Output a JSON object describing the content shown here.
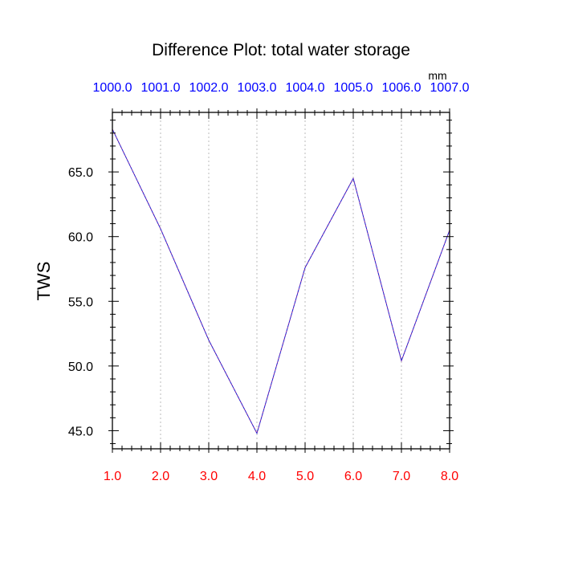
{
  "chart_data": {
    "type": "line",
    "title": "Difference Plot: total water storage",
    "ylabel": "TWS",
    "top_axis_units": "mm",
    "x": [
      1.0,
      2.0,
      3.0,
      4.0,
      5.0,
      6.0,
      7.0,
      8.0
    ],
    "xlim": [
      1.0,
      8.0
    ],
    "ylim": [
      43.6,
      69.6
    ],
    "x_ticks": [
      "1.0",
      "2.0",
      "3.0",
      "4.0",
      "5.0",
      "6.0",
      "7.0",
      "8.0"
    ],
    "top_ticks": [
      "1000.0",
      "1001.0",
      "1002.0",
      "1003.0",
      "1004.0",
      "1005.0",
      "1006.0",
      "1007.0"
    ],
    "y_ticks": [
      45.0,
      50.0,
      55.0,
      60.0,
      65.0
    ],
    "y_tick_labels": [
      "45.0",
      "50.0",
      "55.0",
      "60.0",
      "65.0"
    ],
    "grid": "vertical-dotted",
    "series": [
      {
        "values": [
          68.3,
          60.6,
          52.0,
          44.8,
          57.6,
          64.5,
          50.4,
          60.5
        ],
        "color": "#7a1fa2"
      },
      {
        "values": [
          68.3,
          60.6,
          52.0,
          44.8,
          57.6,
          64.5,
          50.4,
          60.5
        ],
        "color": "#1f1fd0"
      }
    ],
    "colors": {
      "bottom_tick_labels": "#ff0000",
      "top_tick_labels": "#0000ff",
      "axes": "#000000",
      "grid": "#bbbbbb"
    }
  }
}
